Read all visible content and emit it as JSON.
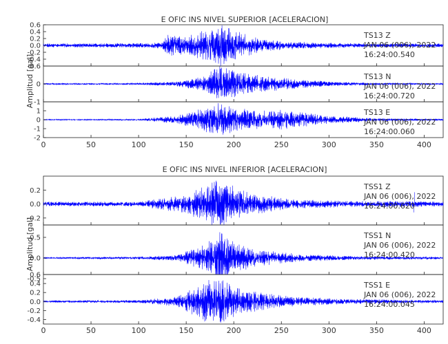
{
  "chart_data": [
    {
      "type": "line",
      "title": "E OFIC INS NIVEL SUPERIOR [ACELERACION]",
      "ylabel": "Amplitud [gal]",
      "xlim": [
        0,
        420
      ],
      "xticks": [
        "0",
        "50",
        "100",
        "150",
        "200",
        "250",
        "300",
        "350",
        "400"
      ],
      "color": "#0000ff",
      "panels": [
        {
          "channel": "TS13 Z",
          "date": "JAN 06 (006), 2022",
          "time": "16:24:00.540",
          "ylim": [
            -0.6,
            0.6
          ],
          "yticks": [
            "0.6",
            "0.4",
            "0.2",
            "0.0",
            "-0.2",
            "-0.4",
            "-0.6"
          ],
          "envelope": [
            [
              0,
              0.05
            ],
            [
              100,
              0.06
            ],
            [
              125,
              0.08
            ],
            [
              130,
              0.3
            ],
            [
              150,
              0.25
            ],
            [
              165,
              0.35
            ],
            [
              185,
              0.6
            ],
            [
              200,
              0.4
            ],
            [
              230,
              0.15
            ],
            [
              280,
              0.08
            ],
            [
              320,
              0.06
            ],
            [
              420,
              0.05
            ]
          ]
        },
        {
          "channel": "TS13 N",
          "date": "JAN 06 (006), 2022",
          "time": "16:24:00.720",
          "ylim": [
            -1.0,
            1.0
          ],
          "yticks": [
            "0",
            "-1"
          ],
          "envelope": [
            [
              0,
              0.04
            ],
            [
              100,
              0.05
            ],
            [
              140,
              0.12
            ],
            [
              170,
              0.4
            ],
            [
              185,
              1.0
            ],
            [
              195,
              0.8
            ],
            [
              215,
              0.5
            ],
            [
              250,
              0.3
            ],
            [
              300,
              0.12
            ],
            [
              350,
              0.06
            ],
            [
              420,
              0.04
            ]
          ]
        },
        {
          "channel": "TS13 E",
          "date": "JAN 06 (006), 2022",
          "time": "16:24:00.060",
          "ylim": [
            -2.0,
            2.0
          ],
          "yticks": [
            "1",
            "0",
            "-1",
            "-2"
          ],
          "envelope": [
            [
              0,
              0.05
            ],
            [
              100,
              0.07
            ],
            [
              140,
              0.4
            ],
            [
              170,
              1.2
            ],
            [
              185,
              1.8
            ],
            [
              200,
              1.2
            ],
            [
              220,
              1.0
            ],
            [
              250,
              1.0
            ],
            [
              300,
              0.4
            ],
            [
              350,
              0.15
            ],
            [
              420,
              0.08
            ]
          ]
        }
      ]
    },
    {
      "type": "line",
      "title": "E OFIC INS NIVEL INFERIOR [ACELERACION]",
      "ylabel": "Amplitud [gal]",
      "xlim": [
        0,
        420
      ],
      "xticks": [
        "0",
        "50",
        "100",
        "150",
        "200",
        "250",
        "300",
        "350",
        "400"
      ],
      "color": "#0000ff",
      "panels": [
        {
          "channel": "TSS1 Z",
          "date": "JAN 06 (006), 2022",
          "time": "16:24:00.620",
          "ylim": [
            -0.3,
            0.4
          ],
          "yticks": [
            "0.2",
            "0.0",
            "-0.2"
          ],
          "envelope": [
            [
              0,
              0.03
            ],
            [
              100,
              0.03
            ],
            [
              115,
              0.06
            ],
            [
              140,
              0.1
            ],
            [
              165,
              0.2
            ],
            [
              180,
              0.3
            ],
            [
              190,
              0.3
            ],
            [
              215,
              0.15
            ],
            [
              260,
              0.06
            ],
            [
              320,
              0.04
            ],
            [
              390,
              0.04
            ],
            [
              420,
              0.03
            ]
          ],
          "spikes": [
            [
              115,
              -0.05
            ],
            [
              390,
              0.17
            ],
            [
              389,
              -0.12
            ]
          ]
        },
        {
          "channel": "TSS1 N",
          "date": "JAN 06 (006), 2022",
          "time": "16:24:00.420",
          "ylim": [
            -0.4,
            0.8
          ],
          "yticks": [
            "0.5",
            "0.0",
            "-0.5"
          ],
          "envelope": [
            [
              0,
              0.02
            ],
            [
              100,
              0.03
            ],
            [
              140,
              0.06
            ],
            [
              170,
              0.3
            ],
            [
              185,
              0.6
            ],
            [
              200,
              0.35
            ],
            [
              220,
              0.2
            ],
            [
              270,
              0.08
            ],
            [
              330,
              0.04
            ],
            [
              420,
              0.03
            ]
          ]
        },
        {
          "channel": "TSS1 E",
          "date": "JAN 06 (006), 2022",
          "time": "16:24:00.045",
          "ylim": [
            -0.5,
            0.6
          ],
          "yticks": [
            "0.6",
            "0.4",
            "0.2",
            "0.0",
            "-0.2",
            "-0.4"
          ],
          "envelope": [
            [
              0,
              0.02
            ],
            [
              100,
              0.03
            ],
            [
              140,
              0.1
            ],
            [
              170,
              0.4
            ],
            [
              185,
              0.5
            ],
            [
              200,
              0.3
            ],
            [
              220,
              0.2
            ],
            [
              260,
              0.1
            ],
            [
              320,
              0.05
            ],
            [
              420,
              0.03
            ]
          ]
        }
      ]
    }
  ]
}
